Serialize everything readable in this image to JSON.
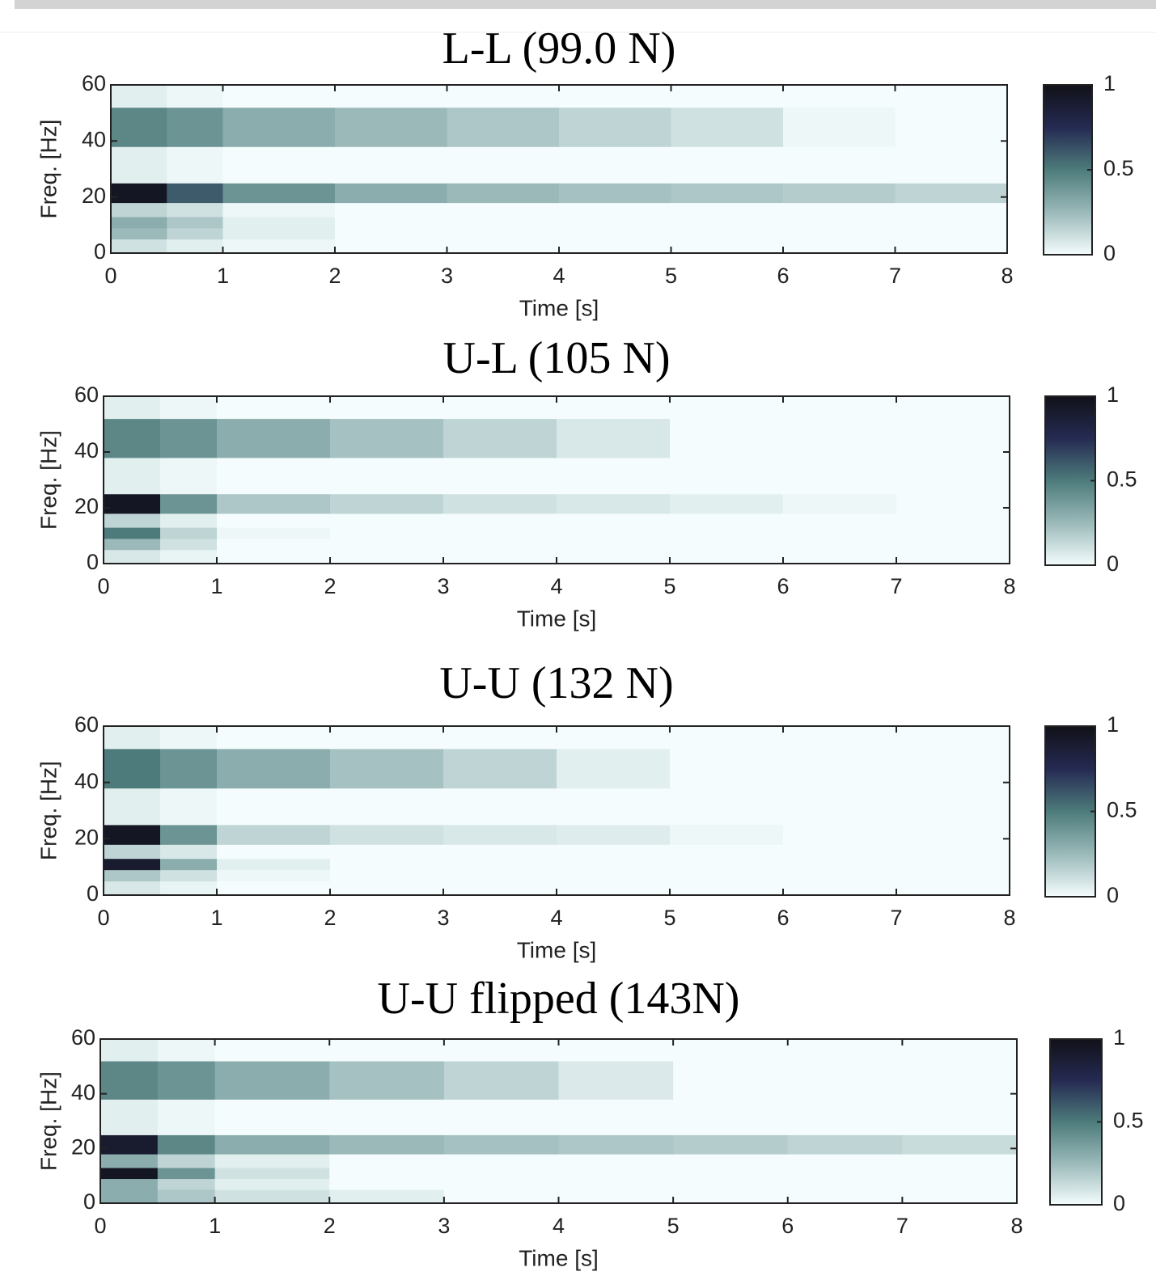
{
  "chart_data": [
    {
      "type": "heatmap",
      "title": "L-L (99.0 N)",
      "xlabel": "Time [s]",
      "ylabel": "Freq. [Hz]",
      "xbins": [
        0,
        0.5,
        1,
        2,
        3,
        4,
        5,
        6,
        7,
        8
      ],
      "ybins": [
        0,
        5,
        9,
        13,
        18,
        25,
        38,
        52,
        60
      ],
      "z": [
        [
          0.1,
          0.05,
          0.02,
          0,
          0,
          0,
          0,
          0,
          0
        ],
        [
          0.25,
          0.15,
          0.05,
          0,
          0,
          0,
          0,
          0,
          0
        ],
        [
          0.3,
          0.2,
          0.05,
          0,
          0,
          0,
          0,
          0,
          0
        ],
        [
          0.15,
          0.1,
          0.02,
          0,
          0,
          0,
          0,
          0,
          0
        ],
        [
          0.95,
          0.6,
          0.4,
          0.3,
          0.25,
          0.22,
          0.2,
          0.18,
          0.15
        ],
        [
          0.05,
          0.02,
          0,
          0,
          0,
          0,
          0,
          0,
          0
        ],
        [
          0.45,
          0.4,
          0.3,
          0.25,
          0.2,
          0.15,
          0.1,
          0.02,
          0
        ],
        [
          0.05,
          0.02,
          0,
          0,
          0,
          0,
          0,
          0,
          0
        ]
      ],
      "xlim": [
        0,
        8
      ],
      "ylim": [
        0,
        60
      ],
      "xticks": [
        0,
        1,
        2,
        3,
        4,
        5,
        6,
        7,
        8
      ],
      "yticks": [
        0,
        20,
        40,
        60
      ],
      "clim": [
        0,
        1
      ],
      "cticks": [
        0,
        0.5,
        1
      ],
      "colormap": [
        "#f4fcfd",
        "#9bb9b9",
        "#4d7b7b",
        "#252a52",
        "#111118"
      ]
    },
    {
      "type": "heatmap",
      "title": "U-L (105 N)",
      "xlabel": "Time [s]",
      "ylabel": "Freq. [Hz]",
      "xbins": [
        0,
        0.5,
        1,
        2,
        3,
        4,
        5,
        6,
        7,
        8
      ],
      "ybins": [
        0,
        5,
        9,
        13,
        18,
        25,
        38,
        52,
        60
      ],
      "z": [
        [
          0.08,
          0.03,
          0,
          0,
          0,
          0,
          0,
          0,
          0
        ],
        [
          0.25,
          0.1,
          0,
          0,
          0,
          0,
          0,
          0,
          0
        ],
        [
          0.5,
          0.15,
          0.02,
          0,
          0,
          0,
          0,
          0,
          0
        ],
        [
          0.15,
          0.05,
          0,
          0,
          0,
          0,
          0,
          0,
          0
        ],
        [
          0.95,
          0.4,
          0.2,
          0.15,
          0.1,
          0.08,
          0.05,
          0.02,
          0
        ],
        [
          0.05,
          0.02,
          0,
          0,
          0,
          0,
          0,
          0,
          0
        ],
        [
          0.45,
          0.4,
          0.3,
          0.22,
          0.15,
          0.08,
          0,
          0,
          0
        ],
        [
          0.05,
          0.02,
          0,
          0,
          0,
          0,
          0,
          0,
          0
        ]
      ],
      "xlim": [
        0,
        8
      ],
      "ylim": [
        0,
        60
      ],
      "xticks": [
        0,
        1,
        2,
        3,
        4,
        5,
        6,
        7,
        8
      ],
      "yticks": [
        0,
        20,
        40,
        60
      ],
      "clim": [
        0,
        1
      ],
      "cticks": [
        0,
        0.5,
        1
      ],
      "colormap": [
        "#f4fcfd",
        "#9bb9b9",
        "#4d7b7b",
        "#252a52",
        "#111118"
      ]
    },
    {
      "type": "heatmap",
      "title": "U-U (132 N)",
      "xlabel": "Time [s]",
      "ylabel": "Freq. [Hz]",
      "xbins": [
        0,
        0.5,
        1,
        2,
        3,
        4,
        5,
        6,
        7,
        8
      ],
      "ybins": [
        0,
        5,
        9,
        13,
        18,
        25,
        38,
        52,
        60
      ],
      "z": [
        [
          0.08,
          0.03,
          0,
          0,
          0,
          0,
          0,
          0,
          0
        ],
        [
          0.2,
          0.1,
          0.02,
          0,
          0,
          0,
          0,
          0,
          0
        ],
        [
          0.9,
          0.3,
          0.05,
          0,
          0,
          0,
          0,
          0,
          0
        ],
        [
          0.15,
          0.08,
          0,
          0,
          0,
          0,
          0,
          0,
          0
        ],
        [
          0.95,
          0.4,
          0.15,
          0.1,
          0.08,
          0.06,
          0.02,
          0,
          0
        ],
        [
          0.05,
          0.02,
          0,
          0,
          0,
          0,
          0,
          0,
          0
        ],
        [
          0.5,
          0.4,
          0.3,
          0.22,
          0.15,
          0.05,
          0,
          0,
          0
        ],
        [
          0.05,
          0.02,
          0,
          0,
          0,
          0,
          0,
          0,
          0
        ]
      ],
      "xlim": [
        0,
        8
      ],
      "ylim": [
        0,
        60
      ],
      "xticks": [
        0,
        1,
        2,
        3,
        4,
        5,
        6,
        7,
        8
      ],
      "yticks": [
        0,
        20,
        40,
        60
      ],
      "clim": [
        0,
        1
      ],
      "cticks": [
        0,
        0.5,
        1
      ],
      "colormap": [
        "#f4fcfd",
        "#9bb9b9",
        "#4d7b7b",
        "#252a52",
        "#111118"
      ]
    },
    {
      "type": "heatmap",
      "title": "U-U flipped (143N)",
      "xlabel": "Time [s]",
      "ylabel": "Freq. [Hz]",
      "xbins": [
        0,
        0.5,
        1,
        2,
        3,
        4,
        5,
        6,
        7,
        8
      ],
      "ybins": [
        0,
        5,
        9,
        13,
        18,
        25,
        38,
        52,
        60
      ],
      "z": [
        [
          0.3,
          0.2,
          0.1,
          0.05,
          0,
          0,
          0,
          0,
          0
        ],
        [
          0.3,
          0.15,
          0.05,
          0,
          0,
          0,
          0,
          0,
          0
        ],
        [
          0.95,
          0.4,
          0.1,
          0,
          0,
          0,
          0,
          0,
          0
        ],
        [
          0.3,
          0.15,
          0.05,
          0,
          0,
          0,
          0,
          0,
          0
        ],
        [
          0.9,
          0.45,
          0.3,
          0.25,
          0.22,
          0.2,
          0.18,
          0.15,
          0.12
        ],
        [
          0.05,
          0.02,
          0,
          0,
          0,
          0,
          0,
          0,
          0
        ],
        [
          0.45,
          0.4,
          0.3,
          0.22,
          0.15,
          0.07,
          0,
          0,
          0
        ],
        [
          0.05,
          0.02,
          0,
          0,
          0,
          0,
          0,
          0,
          0
        ]
      ],
      "xlim": [
        0,
        8
      ],
      "ylim": [
        0,
        60
      ],
      "xticks": [
        0,
        1,
        2,
        3,
        4,
        5,
        6,
        7,
        8
      ],
      "yticks": [
        0,
        20,
        40,
        60
      ],
      "clim": [
        0,
        1
      ],
      "cticks": [
        0,
        0.5,
        1
      ],
      "colormap": [
        "#f4fcfd",
        "#9bb9b9",
        "#4d7b7b",
        "#252a52",
        "#111118"
      ]
    }
  ]
}
